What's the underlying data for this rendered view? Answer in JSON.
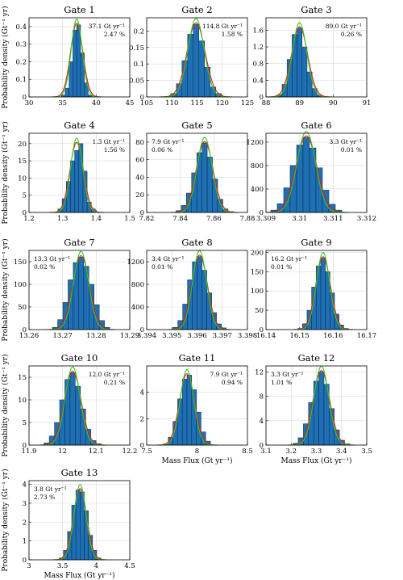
{
  "figure": {
    "ylabel": "Probability density (Gt⁻¹ yr)",
    "xlabel": "Mass Flux (Gt yr⁻¹)"
  },
  "colors": {
    "bar_fill": "#1f6fb5",
    "bar_edge": "#0b2942",
    "fit_red": "#e41a1c",
    "fit_green": "#2ecc1a",
    "grid": "#d9d9d9"
  },
  "chart_data": [
    {
      "type": "bar",
      "title": "Gate 1",
      "mean": 37.1,
      "sd": 0.92,
      "xlim": [
        30,
        45
      ],
      "ylim": [
        0,
        0.45
      ],
      "xticks": [
        "30",
        "35",
        "40",
        "45"
      ],
      "yticks": [
        "0",
        "0.1",
        "0.2",
        "0.3",
        "0.4"
      ],
      "annotation": [
        "37.1 Gt yr⁻¹",
        "2.47 %"
      ],
      "ann_side": "right",
      "series": [
        {
          "values": [
            0.01,
            0.05,
            0.2,
            0.38,
            0.41,
            0.25,
            0.08,
            0.01
          ]
        }
      ]
    },
    {
      "type": "bar",
      "title": "Gate 2",
      "mean": 114.8,
      "sd": 1.8,
      "xlim": [
        105,
        125
      ],
      "ylim": [
        0,
        0.24
      ],
      "xticks": [
        "105",
        "110",
        "115",
        "120",
        "125"
      ],
      "yticks": [
        "0",
        "0.05",
        "0.1",
        "0.15",
        "0.2"
      ],
      "annotation": [
        "114.8 Gt yr⁻¹",
        "1.58 %"
      ],
      "ann_side": "right",
      "series": [
        {
          "values": [
            0.01,
            0.04,
            0.11,
            0.19,
            0.22,
            0.17,
            0.09,
            0.03,
            0.01
          ]
        }
      ]
    },
    {
      "type": "bar",
      "title": "Gate 3",
      "mean": 89.0,
      "sd": 0.24,
      "xlim": [
        88,
        91
      ],
      "ylim": [
        0,
        1.9
      ],
      "xticks": [
        "88",
        "89",
        "90",
        "91"
      ],
      "yticks": [
        "0",
        "0.4",
        "0.8",
        "1.2",
        "1.6"
      ],
      "annotation": [
        "89.0 Gt yr⁻¹",
        "0.26 %"
      ],
      "ann_side": "right",
      "series": [
        {
          "values": [
            0.05,
            0.3,
            0.9,
            1.5,
            1.65,
            1.2,
            0.6,
            0.2,
            0.04
          ]
        }
      ]
    },
    {
      "type": "bar",
      "title": "Gate 4",
      "mean": 1.342,
      "sd": 0.02,
      "xlim": [
        1.2,
        1.5
      ],
      "ylim": [
        0,
        23
      ],
      "xticks": [
        "1.2",
        "1.3",
        "1.4",
        "1.5"
      ],
      "yticks": [
        "0",
        "5",
        "10",
        "15",
        "20"
      ],
      "annotation": [
        "1.3 Gt yr⁻¹",
        "1.56 %"
      ],
      "ann_side": "right",
      "series": [
        {
          "values": [
            1,
            4,
            9,
            15,
            18,
            20,
            12,
            3,
            1
          ]
        }
      ]
    },
    {
      "type": "bar",
      "title": "Gate 5",
      "mean": 7.8545,
      "sd": 0.005,
      "xlim": [
        7.82,
        7.88
      ],
      "ylim": [
        0,
        90
      ],
      "xticks": [
        "7.82",
        "7.84",
        "7.86",
        "7.88"
      ],
      "yticks": [
        "0",
        "20",
        "40",
        "60",
        "80"
      ],
      "annotation": [
        "7.9 Gt yr⁻¹",
        "0.06 %"
      ],
      "ann_side": "left",
      "series": [
        {
          "values": [
            2,
            8,
            22,
            45,
            68,
            79,
            63,
            38,
            15,
            4,
            1
          ]
        }
      ]
    },
    {
      "type": "bar",
      "title": "Gate 6",
      "mean": 3.3102,
      "sd": 0.00031,
      "xlim": [
        3.309,
        3.312
      ],
      "ylim": [
        0,
        1350
      ],
      "xticks": [
        "3.309",
        "3.31",
        "3.311",
        "3.312"
      ],
      "yticks": [
        "0",
        "400",
        "800",
        "1200"
      ],
      "annotation": [
        "3.3 Gt yr⁻¹",
        "0.01 %"
      ],
      "ann_side": "right",
      "series": [
        {
          "values": [
            40,
            150,
            420,
            800,
            1150,
            1280,
            1100,
            760,
            380,
            140,
            40
          ]
        }
      ]
    },
    {
      "type": "bar",
      "title": "Gate 7",
      "mean": 13.2755,
      "sd": 0.0025,
      "xlim": [
        13.26,
        13.29
      ],
      "ylim": [
        0,
        175
      ],
      "xticks": [
        "13.26",
        "13.27",
        "13.28",
        "13.29"
      ],
      "yticks": [
        "0",
        "50",
        "100",
        "150"
      ],
      "annotation": [
        "13.3 Gt yr⁻¹",
        "0.02 %"
      ],
      "ann_side": "left",
      "series": [
        {
          "values": [
            5,
            22,
            60,
            110,
            148,
            160,
            140,
            100,
            55,
            20,
            5
          ]
        }
      ]
    },
    {
      "type": "bar",
      "title": "Gate 8",
      "mean": 3.3961,
      "sd": 0.00031,
      "xlim": [
        3.394,
        3.398
      ],
      "ylim": [
        0,
        1400
      ],
      "xticks": [
        "3.394",
        "3.395",
        "3.396",
        "3.397",
        "3.398"
      ],
      "yticks": [
        "0",
        "400",
        "800",
        "1200"
      ],
      "annotation": [
        "3.4 Gt yr⁻¹",
        "0.01 %"
      ],
      "ann_side": "left",
      "series": [
        {
          "values": [
            40,
            160,
            450,
            880,
            1200,
            1290,
            1050,
            650,
            300,
            100,
            30
          ]
        }
      ]
    },
    {
      "type": "bar",
      "title": "Gate 9",
      "mean": 16.157,
      "sd": 0.0022,
      "xlim": [
        16.14,
        16.17
      ],
      "ylim": [
        0,
        205
      ],
      "xticks": [
        "16.14",
        "16.15",
        "16.16",
        "16.17"
      ],
      "yticks": [
        "0",
        "50",
        "100",
        "150",
        "200"
      ],
      "annotation": [
        "16.2 Gt yr⁻¹",
        "0.01 %"
      ],
      "ann_side": "left",
      "series": [
        {
          "values": [
            3,
            15,
            50,
            110,
            165,
            185,
            150,
            95,
            40,
            12,
            3
          ]
        }
      ]
    },
    {
      "type": "bar",
      "title": "Gate 10",
      "mean": 12.03,
      "sd": 0.025,
      "xlim": [
        11.9,
        12.2
      ],
      "ylim": [
        0,
        17.5
      ],
      "xticks": [
        "11.9",
        "12",
        "12.1",
        "12.2"
      ],
      "yticks": [
        "0",
        "5",
        "10",
        "15"
      ],
      "annotation": [
        "12.0 Gt yr⁻¹",
        "0.21 %"
      ],
      "ann_side": "right",
      "series": [
        {
          "values": [
            0.5,
            2,
            5,
            10,
            14.5,
            16,
            13,
            8,
            3.5,
            1,
            0.3
          ]
        }
      ]
    },
    {
      "type": "bar",
      "title": "Gate 11",
      "mean": 7.9,
      "sd": 0.075,
      "xlim": [
        7.5,
        8.5
      ],
      "ylim": [
        0,
        6
      ],
      "xticks": [
        "7.5",
        "8",
        "8.5"
      ],
      "yticks": [
        "0",
        "2",
        "4"
      ],
      "annotation": [
        "7.9 Gt yr⁻¹",
        "0.94 %"
      ],
      "ann_side": "right",
      "series": [
        {
          "values": [
            0.1,
            0.6,
            1.8,
            3.5,
            5,
            5.3,
            4.2,
            2.5,
            1,
            0.3
          ]
        }
      ]
    },
    {
      "type": "bar",
      "title": "Gate 12",
      "mean": 3.32,
      "sd": 0.033,
      "xlim": [
        3.1,
        3.5
      ],
      "ylim": [
        0,
        13
      ],
      "xticks": [
        "3.1",
        "3.2",
        "3.3",
        "3.4",
        "3.5"
      ],
      "yticks": [
        "0",
        "4",
        "8",
        "12"
      ],
      "annotation": [
        "3.3 Gt yr⁻¹",
        "1.01 %"
      ],
      "ann_side": "left",
      "series": [
        {
          "values": [
            0.3,
            1.2,
            3.5,
            7,
            10.5,
            12,
            10,
            6,
            2.5,
            0.8,
            0.2
          ]
        }
      ]
    },
    {
      "type": "bar",
      "title": "Gate 13",
      "mean": 3.76,
      "sd": 0.1,
      "xlim": [
        3,
        4.5
      ],
      "ylim": [
        0,
        4.2
      ],
      "xticks": [
        "3",
        "3.5",
        "4",
        "4.5"
      ],
      "yticks": [
        "0",
        "1",
        "2",
        "3",
        "4"
      ],
      "annotation": [
        "3.8 Gt yr⁻¹",
        "2.73 %"
      ],
      "ann_side": "left",
      "series": [
        {
          "values": [
            0.1,
            0.5,
            1.5,
            2.9,
            3.7,
            3.6,
            2.6,
            1.3,
            0.5,
            0.1
          ]
        }
      ]
    }
  ]
}
